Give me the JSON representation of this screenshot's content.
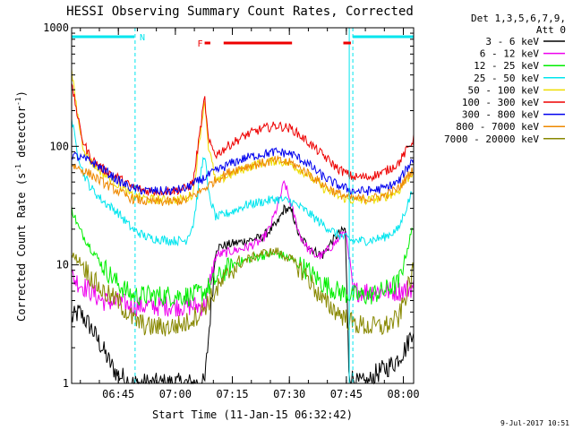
{
  "chart_data": {
    "type": "line",
    "title": "HESSI Observing Summary Count Rates, Corrected",
    "ylabel_main": "Corrected Count Rate (s",
    "ylabel_sup1": "-1",
    "ylabel_mid": " detector",
    "ylabel_sup2": "-1",
    "ylabel_end": ")",
    "xlabel": "Start Time (11-Jan-15 06:32:42)",
    "timestamp": "9-Jul-2017 10:51",
    "yscale": "log",
    "ylim": [
      1,
      1000
    ],
    "xlim_minutes": [
      0,
      90
    ],
    "x_ticks": [
      {
        "label": "06:45",
        "t": 12.3
      },
      {
        "label": "07:00",
        "t": 27.3
      },
      {
        "label": "07:15",
        "t": 42.3
      },
      {
        "label": "07:30",
        "t": 57.3
      },
      {
        "label": "07:45",
        "t": 72.3
      },
      {
        "label": "08:00",
        "t": 87.3
      }
    ],
    "y_ticks": [
      {
        "label": "1",
        "v": 1
      },
      {
        "label": "10",
        "v": 10
      },
      {
        "label": "100",
        "v": 100
      },
      {
        "label": "1000",
        "v": 1000
      }
    ],
    "legend_header": [
      "Det 1,3,5,6,7,9,",
      "Att 0"
    ],
    "flags": [
      {
        "label": "N",
        "color": "#00e5ee",
        "segments": [
          [
            0,
            16.5
          ],
          [
            74,
            90
          ]
        ]
      },
      {
        "label": "F",
        "color": "#ee0000",
        "segments": [
          [
            35,
            36.5
          ],
          [
            40,
            58
          ],
          [
            71.5,
            73.5
          ]
        ]
      }
    ],
    "night_boundaries": [
      16.7,
      74
    ],
    "series": [
      {
        "name": "3 - 6 keV",
        "color": "#000000",
        "t": [
          0,
          2,
          5,
          8,
          10,
          12,
          14,
          16,
          18,
          22,
          28,
          32,
          35,
          38,
          42,
          46,
          50,
          54,
          56,
          58,
          60,
          64,
          66,
          68,
          70,
          72,
          73,
          75,
          78,
          80,
          82,
          85,
          88,
          90
        ],
        "v": [
          3.5,
          4,
          3,
          2,
          1.5,
          1.2,
          1.1,
          1,
          1,
          1,
          1,
          1,
          1,
          14,
          15,
          16,
          17,
          22,
          30,
          28,
          17,
          13,
          12,
          15,
          18,
          20,
          1.2,
          1,
          1,
          1.2,
          1.3,
          1.5,
          2,
          3
        ]
      },
      {
        "name": "6 - 12 keV",
        "color": "#ee00ee",
        "t": [
          0,
          2,
          5,
          8,
          12,
          16,
          20,
          28,
          32,
          35,
          38,
          42,
          46,
          50,
          52,
          54,
          56,
          58,
          60,
          62,
          64,
          66,
          68,
          70,
          72,
          74,
          78,
          82,
          86,
          90
        ],
        "v": [
          8,
          7,
          6,
          5,
          4.8,
          4.5,
          4.5,
          4.5,
          4.5,
          4.5,
          12,
          13,
          14,
          16,
          20,
          30,
          50,
          30,
          18,
          14,
          12,
          12,
          14,
          16,
          20,
          6,
          6,
          6,
          6,
          6.5
        ]
      },
      {
        "name": "12 - 25 keV",
        "color": "#00ee00",
        "t": [
          0,
          2,
          5,
          8,
          12,
          16,
          20,
          26,
          32,
          35,
          38,
          42,
          46,
          50,
          54,
          58,
          62,
          66,
          70,
          74,
          78,
          82,
          86,
          90
        ],
        "v": [
          30,
          20,
          14,
          10,
          7,
          5.5,
          5.5,
          5.5,
          5.5,
          6,
          7.5,
          10,
          11,
          12,
          12.5,
          11,
          9,
          7,
          6,
          5.5,
          5.5,
          6,
          7,
          22
        ]
      },
      {
        "name": "25 - 50 keV",
        "color": "#00e5ee",
        "t": [
          0,
          1,
          2,
          3,
          5,
          8,
          12,
          16,
          20,
          26,
          30,
          32,
          34,
          35,
          36,
          38,
          42,
          46,
          50,
          54,
          58,
          62,
          66,
          70,
          74,
          78,
          82,
          86,
          90
        ],
        "v": [
          170,
          110,
          80,
          60,
          45,
          35,
          28,
          20,
          17,
          16,
          16,
          22,
          60,
          90,
          40,
          25,
          28,
          32,
          34,
          36,
          34,
          28,
          22,
          18,
          16,
          16,
          17,
          20,
          45
        ]
      },
      {
        "name": "50 - 100 keV",
        "color": "#eedd00",
        "t": [
          0,
          1,
          2,
          3,
          5,
          8,
          12,
          16,
          20,
          26,
          30,
          32,
          34,
          35,
          36,
          38,
          42,
          46,
          50,
          54,
          58,
          62,
          66,
          70,
          74,
          78,
          82,
          86,
          90
        ],
        "v": [
          420,
          250,
          150,
          100,
          75,
          60,
          48,
          38,
          36,
          35,
          36,
          40,
          140,
          250,
          100,
          50,
          58,
          66,
          72,
          76,
          70,
          58,
          45,
          38,
          35,
          35,
          37,
          42,
          62
        ]
      },
      {
        "name": "100 - 300 keV",
        "color": "#ee0000",
        "t": [
          0,
          1,
          2,
          3,
          5,
          8,
          12,
          16,
          20,
          26,
          30,
          32,
          34,
          35,
          36,
          38,
          42,
          46,
          50,
          54,
          58,
          62,
          66,
          70,
          74,
          78,
          82,
          86,
          90
        ],
        "v": [
          320,
          230,
          150,
          110,
          80,
          65,
          55,
          45,
          42,
          42,
          44,
          50,
          150,
          260,
          110,
          85,
          105,
          125,
          140,
          150,
          140,
          110,
          85,
          65,
          55,
          55,
          60,
          72,
          115
        ]
      },
      {
        "name": "300 - 800 keV",
        "color": "#0000ee",
        "t": [
          0,
          2,
          5,
          8,
          12,
          16,
          20,
          26,
          30,
          34,
          38,
          42,
          46,
          50,
          54,
          58,
          62,
          66,
          70,
          74,
          78,
          82,
          86,
          90
        ],
        "v": [
          85,
          80,
          75,
          65,
          52,
          44,
          42,
          42,
          44,
          52,
          62,
          72,
          80,
          86,
          90,
          86,
          72,
          56,
          47,
          42,
          42,
          44,
          50,
          80
        ]
      },
      {
        "name": "800 - 7000 keV",
        "color": "#ee8800",
        "t": [
          0,
          2,
          5,
          8,
          12,
          16,
          20,
          26,
          30,
          34,
          38,
          42,
          46,
          50,
          54,
          58,
          62,
          66,
          70,
          74,
          78,
          82,
          86,
          90
        ],
        "v": [
          70,
          65,
          58,
          50,
          42,
          36,
          34,
          34,
          35,
          42,
          52,
          62,
          68,
          72,
          76,
          72,
          60,
          48,
          40,
          36,
          36,
          38,
          44,
          65
        ]
      },
      {
        "name": "7000 - 20000 keV",
        "color": "#888800",
        "t": [
          0,
          2,
          5,
          8,
          12,
          16,
          20,
          26,
          30,
          34,
          38,
          42,
          46,
          50,
          54,
          58,
          62,
          66,
          70,
          74,
          78,
          82,
          86,
          90
        ],
        "v": [
          12,
          11,
          8,
          6,
          5,
          3.5,
          3,
          3,
          3.2,
          4,
          6,
          9,
          11,
          12.5,
          13,
          11,
          8,
          5,
          4,
          3.2,
          3,
          3,
          3.5,
          9
        ]
      }
    ]
  }
}
